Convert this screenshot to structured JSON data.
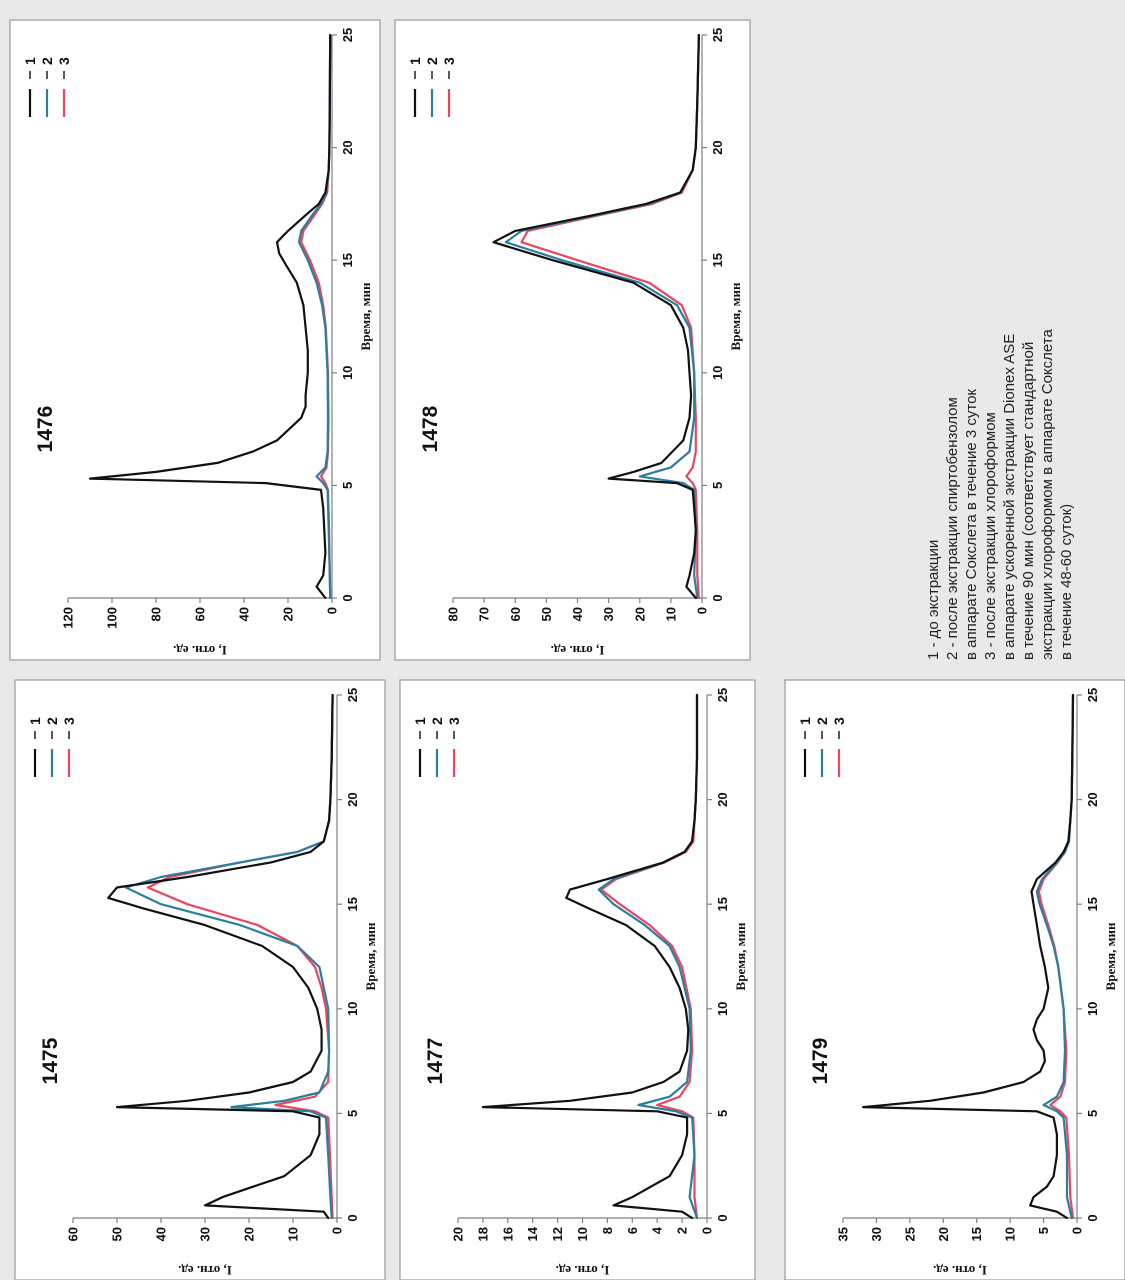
{
  "series_colors": {
    "1": "#111111",
    "2": "#2a7f9e",
    "3": "#e8475f"
  },
  "description": [
    "1 - до экстракции",
    "2 - после экстракции спиртобензолом",
    "в аппарате Сокслета в течение 3 суток",
    "3 - после экстракции хлороформом",
    "в аппарате ускоренной экстракции Dionex ASE",
    "в течение 90 мин (соответствует стандартной",
    "экстракции хлороформом в аппарате Сокслета",
    "в течение 48-60 суток)",
    ""
  ],
  "chart_data": [
    {
      "type": "line",
      "title": "1475",
      "xlabel": "Время, мин",
      "ylabel": "I, отн. ед.",
      "xlim": [
        0,
        25
      ],
      "ylim": [
        0,
        60
      ],
      "xticks": [
        0,
        5,
        10,
        15,
        20,
        25
      ],
      "yticks": [
        0,
        10,
        20,
        30,
        40,
        50,
        60
      ],
      "legend": [
        "1",
        "2",
        "3"
      ],
      "series": [
        {
          "name": "1",
          "x": [
            0,
            0.3,
            0.6,
            1,
            1.5,
            2,
            3,
            4,
            4.8,
            5.1,
            5.3,
            5.6,
            6,
            6.5,
            7,
            8,
            9,
            10,
            11,
            12,
            13,
            14,
            14.8,
            15.3,
            15.8,
            16.3,
            17,
            17.5,
            18,
            19,
            20,
            22,
            25
          ],
          "y": [
            2,
            3,
            30,
            26,
            19,
            12,
            6,
            4,
            4,
            10,
            50,
            34,
            20,
            10,
            6,
            3.5,
            3.5,
            4.5,
            6.5,
            10,
            17,
            30,
            44,
            52,
            50,
            34,
            15,
            6,
            3,
            1.8,
            1.5,
            1.2,
            1
          ]
        },
        {
          "name": "2",
          "x": [
            0,
            1,
            3,
            4.8,
            5.1,
            5.3,
            5.6,
            6,
            7,
            8,
            10,
            12,
            13,
            14,
            15,
            15.8,
            16.3,
            17,
            17.5,
            18,
            19,
            20,
            22,
            25
          ],
          "y": [
            1.2,
            1.5,
            2,
            2.5,
            6,
            24,
            12,
            4,
            2,
            1.8,
            2,
            4,
            9,
            22,
            40,
            48,
            40,
            22,
            9,
            3,
            1.8,
            1.5,
            1.2,
            1
          ]
        },
        {
          "name": "3",
          "x": [
            0,
            1,
            3,
            4.8,
            5.1,
            5.4,
            5.8,
            6.5,
            8,
            10,
            11,
            12,
            13,
            14,
            15,
            15.8,
            16.3,
            17,
            17.5,
            18,
            19,
            20,
            22,
            25
          ],
          "y": [
            1,
            1.2,
            1.6,
            2,
            5,
            14,
            5,
            2,
            1.8,
            2.5,
            3.5,
            5,
            9,
            18,
            34,
            43,
            38,
            22,
            9,
            3,
            1.8,
            1.5,
            1.2,
            1
          ]
        }
      ]
    },
    {
      "type": "line",
      "title": "1476",
      "xlabel": "Время, мин",
      "ylabel": "I, отн. ед.",
      "xlim": [
        0,
        25
      ],
      "ylim": [
        0,
        120
      ],
      "xticks": [
        0,
        5,
        10,
        15,
        20,
        25
      ],
      "yticks": [
        0,
        20,
        40,
        60,
        80,
        100,
        120
      ],
      "legend": [
        "1",
        "2",
        "3"
      ],
      "series": [
        {
          "name": "1",
          "x": [
            0,
            0.5,
            1,
            2,
            3,
            4,
            4.8,
            5.1,
            5.3,
            5.6,
            6,
            6.5,
            7,
            8,
            8.5,
            9,
            10,
            11,
            12,
            13,
            14,
            14.8,
            15.3,
            15.8,
            16.3,
            17,
            17.5,
            18,
            19,
            20,
            22,
            25
          ],
          "y": [
            3,
            7,
            4,
            3,
            3.5,
            4,
            5,
            30,
            110,
            80,
            52,
            36,
            25,
            14,
            12,
            12,
            11,
            11,
            12,
            13,
            16,
            21,
            24,
            25,
            20,
            12,
            6,
            3,
            1.5,
            1.2,
            1,
            0.8
          ]
        },
        {
          "name": "2",
          "x": [
            0,
            1,
            3,
            4.8,
            5.1,
            5.4,
            5.8,
            6.5,
            8,
            10,
            12,
            13,
            14,
            15,
            15.8,
            16.3,
            17,
            17.5,
            18,
            19,
            20,
            22,
            25
          ],
          "y": [
            0.8,
            1,
            1.5,
            2,
            4,
            7,
            3,
            2,
            1.8,
            2,
            3,
            4.5,
            7,
            11,
            15,
            14,
            9,
            5,
            2.5,
            1.5,
            1.2,
            1,
            0.8
          ]
        },
        {
          "name": "3",
          "x": [
            0,
            1,
            3,
            4.8,
            5.1,
            5.4,
            5.8,
            6.5,
            8,
            10,
            12,
            13,
            14,
            15,
            15.8,
            16.3,
            17,
            17.5,
            18,
            19,
            20,
            22,
            25
          ],
          "y": [
            0.8,
            1,
            1.3,
            1.8,
            3,
            5,
            2.5,
            1.8,
            1.6,
            1.8,
            2.8,
            4,
            6,
            10,
            14,
            13,
            8,
            4.5,
            2.2,
            1.5,
            1.2,
            1,
            0.8
          ]
        }
      ]
    },
    {
      "type": "line",
      "title": "1477",
      "xlabel": "Время, мин",
      "ylabel": "I, отн. ед.",
      "xlim": [
        0,
        25
      ],
      "ylim": [
        0,
        20
      ],
      "xticks": [
        0,
        5,
        10,
        15,
        20,
        25
      ],
      "yticks": [
        0,
        2,
        4,
        6,
        8,
        10,
        12,
        14,
        16,
        18,
        20
      ],
      "legend": [
        "1",
        "2",
        "3"
      ],
      "series": [
        {
          "name": "1",
          "x": [
            0,
            0.3,
            0.6,
            1,
            1.5,
            2,
            3,
            4,
            4.8,
            5.1,
            5.3,
            5.6,
            6,
            6.5,
            7,
            8,
            9,
            10,
            11,
            12,
            13,
            14,
            14.8,
            15.3,
            15.7,
            16.2,
            17,
            17.5,
            18,
            19,
            20,
            22,
            25
          ],
          "y": [
            1.2,
            2,
            7.5,
            6,
            4.5,
            3,
            2,
            1.6,
            1.6,
            4,
            18,
            11,
            6,
            3.5,
            2.2,
            1.6,
            1.5,
            1.7,
            2.2,
            3,
            4.2,
            6.5,
            9.5,
            11.3,
            11,
            8,
            3.5,
            1.8,
            1.2,
            1,
            0.9,
            0.8,
            0.8
          ]
        },
        {
          "name": "2",
          "x": [
            0,
            1,
            3,
            4.8,
            5.1,
            5.4,
            5.8,
            6.5,
            8,
            10,
            12,
            13,
            14,
            15,
            15.7,
            16.2,
            17,
            17.5,
            18,
            19,
            20,
            22,
            25
          ],
          "y": [
            0.8,
            1.4,
            1,
            1.2,
            2.5,
            5.5,
            3,
            1.6,
            1.3,
            1.4,
            2.2,
            3,
            5,
            7.5,
            8.7,
            7.5,
            3.5,
            1.8,
            1.2,
            1,
            0.9,
            0.8,
            0.8
          ]
        },
        {
          "name": "3",
          "x": [
            0,
            1,
            3,
            4.8,
            5.1,
            5.4,
            5.8,
            6.5,
            8,
            10,
            12,
            13,
            14,
            15,
            15.7,
            16.2,
            17,
            17.5,
            18,
            19,
            20,
            22,
            25
          ],
          "y": [
            0.8,
            1,
            1,
            1.1,
            2,
            4,
            2.2,
            1.4,
            1.2,
            1.3,
            2,
            2.8,
            4.6,
            7,
            8.5,
            7.3,
            3.4,
            1.7,
            1.1,
            1,
            0.9,
            0.8,
            0.8
          ]
        }
      ]
    },
    {
      "type": "line",
      "title": "1478",
      "xlabel": "Время, мин",
      "ylabel": "I, отн. ед.",
      "xlim": [
        0,
        25
      ],
      "ylim": [
        0,
        80
      ],
      "xticks": [
        0,
        5,
        10,
        15,
        20,
        25
      ],
      "yticks": [
        0,
        10,
        20,
        30,
        40,
        50,
        60,
        70,
        80
      ],
      "legend": [
        "1",
        "2",
        "3"
      ],
      "series": [
        {
          "name": "1",
          "x": [
            0,
            0.5,
            1,
            2,
            3,
            4,
            4.8,
            5.1,
            5.3,
            5.6,
            6,
            7,
            8,
            9,
            10,
            11,
            12,
            13,
            14,
            15,
            15.8,
            16.3,
            17,
            17.5,
            18,
            19,
            20,
            22,
            25
          ],
          "y": [
            2,
            5,
            4,
            2.5,
            2,
            2.5,
            3,
            8,
            30,
            22,
            13,
            6,
            4,
            3.5,
            4,
            4.5,
            6,
            10,
            22,
            48,
            67,
            60,
            35,
            18,
            7,
            3,
            2,
            1.5,
            1
          ]
        },
        {
          "name": "2",
          "x": [
            0,
            1,
            3,
            4.8,
            5.1,
            5.4,
            5.8,
            6.5,
            8,
            10,
            12,
            13,
            14,
            15,
            15.8,
            16.3,
            17,
            17.5,
            18,
            19,
            20,
            22,
            25
          ],
          "y": [
            1.5,
            2.5,
            2,
            2.5,
            6,
            20,
            10,
            4,
            2.5,
            2.5,
            4,
            8,
            20,
            45,
            63,
            58,
            34,
            17,
            7,
            3,
            2,
            1.5,
            1
          ]
        },
        {
          "name": "3",
          "x": [
            0,
            1,
            3,
            4.8,
            5.1,
            5.4,
            5.8,
            6.5,
            8,
            10,
            12,
            13,
            14,
            15,
            15.8,
            16.3,
            17,
            17.5,
            18,
            19,
            20,
            22,
            25
          ],
          "y": [
            1,
            1.5,
            1.5,
            2,
            3,
            5,
            3,
            2,
            2,
            2.5,
            3.5,
            6.5,
            17,
            40,
            58,
            56,
            33,
            16,
            6.5,
            3,
            2,
            1.5,
            1
          ]
        }
      ]
    },
    {
      "type": "line",
      "title": "1479",
      "xlabel": "Время, мин",
      "ylabel": "I, отн. ед.",
      "xlim": [
        0,
        25
      ],
      "ylim": [
        0,
        35
      ],
      "xticks": [
        0,
        5,
        10,
        15,
        20,
        25
      ],
      "yticks": [
        0,
        5,
        10,
        15,
        20,
        25,
        30,
        35
      ],
      "legend": [
        "1",
        "2",
        "3"
      ],
      "series": [
        {
          "name": "1",
          "x": [
            0,
            0.3,
            0.6,
            1,
            1.5,
            2,
            3,
            4,
            4.8,
            5.1,
            5.3,
            5.6,
            6,
            6.5,
            7,
            7.5,
            8,
            8.5,
            9,
            9.5,
            10,
            11,
            12,
            13,
            14,
            15,
            15.6,
            16.2,
            17,
            17.5,
            18,
            19,
            20,
            22,
            25
          ],
          "y": [
            1.5,
            3,
            7,
            6.5,
            4.5,
            3.5,
            3,
            3,
            3.5,
            6,
            32,
            22,
            14,
            8,
            5.5,
            4.8,
            5,
            6,
            6.5,
            6,
            5,
            4.3,
            4.8,
            5.5,
            6,
            6.5,
            6.8,
            6,
            3.2,
            2,
            1.3,
            1,
            0.8,
            0.7,
            0.6
          ]
        },
        {
          "name": "2",
          "x": [
            0,
            1,
            3,
            4.8,
            5.1,
            5.4,
            5.8,
            6.5,
            8,
            10,
            12,
            13,
            14,
            15,
            15.6,
            16.2,
            17,
            17.5,
            18,
            19,
            20,
            22,
            25
          ],
          "y": [
            0.8,
            1.5,
            1.5,
            2,
            3,
            5,
            3,
            2,
            1.8,
            2,
            2.8,
            3.5,
            4.5,
            5.6,
            6,
            5.2,
            3,
            1.8,
            1.2,
            1,
            0.8,
            0.7,
            0.6
          ]
        },
        {
          "name": "3",
          "x": [
            0,
            1,
            3,
            4.8,
            5.1,
            5.4,
            5.8,
            6.5,
            8,
            10,
            12,
            13,
            14,
            15,
            15.6,
            16.2,
            17,
            17.5,
            18,
            19,
            20,
            22,
            25
          ],
          "y": [
            0.6,
            1,
            1.2,
            1.6,
            2.5,
            4,
            2.5,
            1.8,
            1.6,
            2,
            2.8,
            3.4,
            4.3,
            5.3,
            5.7,
            5,
            2.9,
            1.8,
            1.2,
            1,
            0.8,
            0.7,
            0.6
          ]
        }
      ]
    }
  ]
}
